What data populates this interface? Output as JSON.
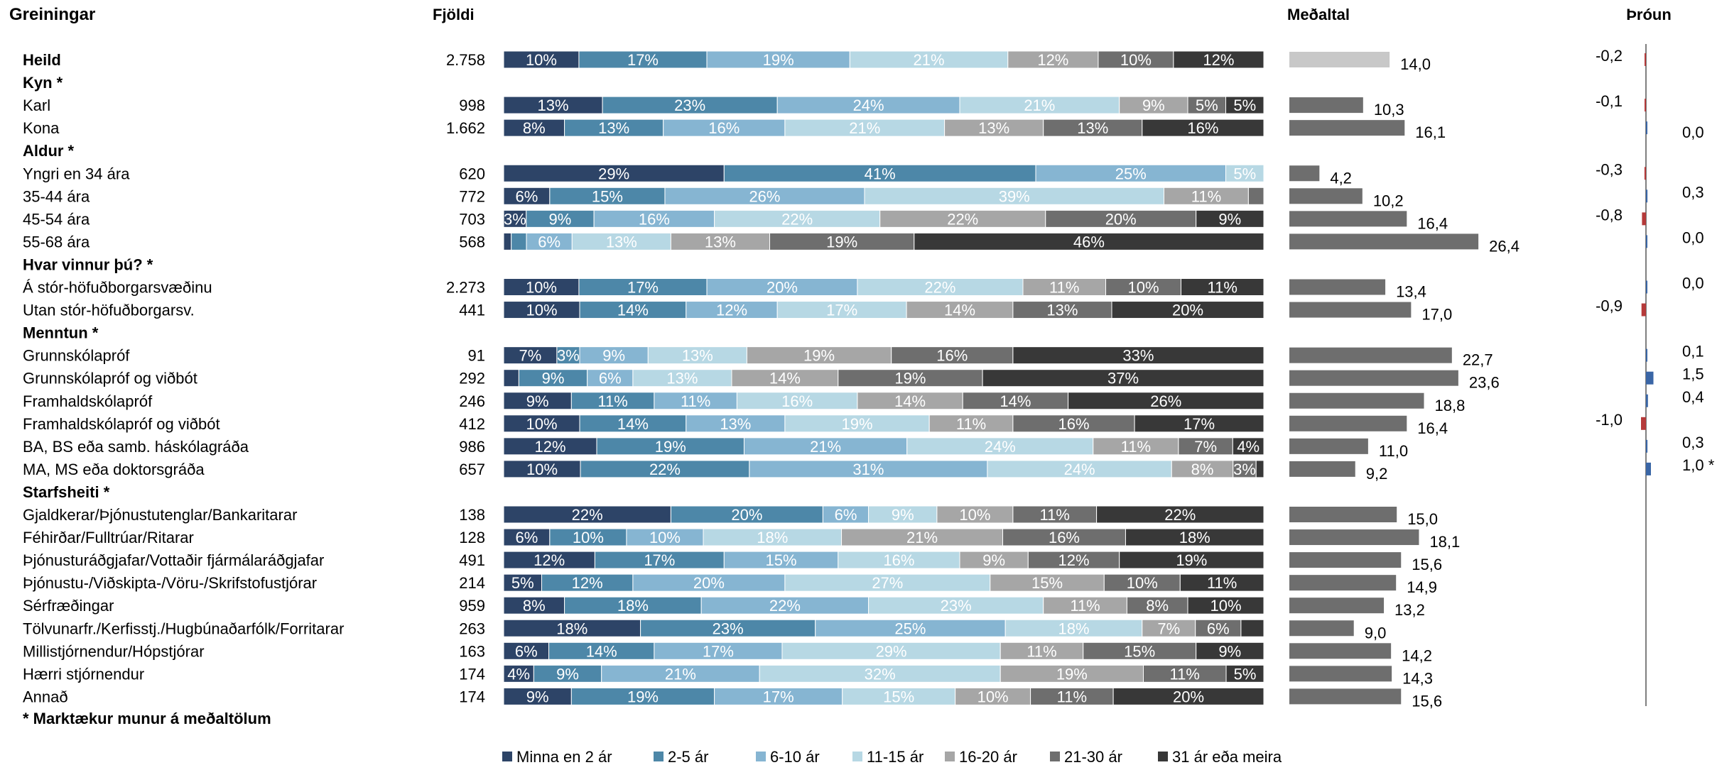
{
  "headers": {
    "greiningar": "Greiningar",
    "fjoldi": "Fjöldi",
    "medaltal": "Meðaltal",
    "throun": "Þróun"
  },
  "footnote": "* Marktækur munur á meðaltölum",
  "colors": {
    "segments": [
      "#2d4467",
      "#4d87a8",
      "#86b5d2",
      "#b7d8e4",
      "#a6a6a6",
      "#6e6e6e",
      "#383838"
    ],
    "total_mean_bar": "#c8c8c8",
    "mean_bar": "#6e6e6e",
    "trend_positive": "#3a66a6",
    "trend_negative": "#b53a3a"
  },
  "chart_data": {
    "type": "bar",
    "stacked": true,
    "orientation": "horizontal",
    "legend_position": "bottom",
    "series": [
      {
        "name": "Minna en 2 ár"
      },
      {
        "name": "2-5 ár"
      },
      {
        "name": "6-10 ár"
      },
      {
        "name": "11-15 ár"
      },
      {
        "name": "16-20 ár"
      },
      {
        "name": "21-30 ár"
      },
      {
        "name": "31 ár eða meira"
      }
    ],
    "rows": [
      {
        "label": "Heild",
        "kind": "total",
        "n": "2.758",
        "values": [
          10,
          17,
          19,
          21,
          12,
          10,
          12
        ],
        "labels": [
          "10%",
          "17%",
          "19%",
          "21%",
          "12%",
          "10%",
          "12%"
        ],
        "mean": 14.0,
        "mean_label": "14,0",
        "trend": -0.2,
        "trend_label": "-0,2"
      },
      {
        "label": "Kyn *",
        "kind": "group"
      },
      {
        "label": "Karl",
        "kind": "row",
        "n": "998",
        "values": [
          13,
          23,
          24,
          21,
          9,
          5,
          5
        ],
        "labels": [
          "13%",
          "23%",
          "24%",
          "21%",
          "9%",
          "5%",
          "5%"
        ],
        "mean": 10.3,
        "mean_label": "10,3",
        "trend": -0.1,
        "trend_label": "-0,1"
      },
      {
        "label": "Kona",
        "kind": "row",
        "n": "1.662",
        "values": [
          8,
          13,
          16,
          21,
          13,
          13,
          16
        ],
        "labels": [
          "8%",
          "13%",
          "16%",
          "21%",
          "13%",
          "13%",
          "16%"
        ],
        "mean": 16.1,
        "mean_label": "16,1",
        "trend": 0.0,
        "trend_label": "0,0"
      },
      {
        "label": "Aldur *",
        "kind": "group"
      },
      {
        "label": "Yngri en 34 ára",
        "kind": "row",
        "n": "620",
        "values": [
          29,
          41,
          25,
          5,
          0,
          0,
          0
        ],
        "labels": [
          "29%",
          "41%",
          "25%",
          "5%",
          "",
          "",
          ""
        ],
        "mean": 4.2,
        "mean_label": "4,2",
        "trend": -0.3,
        "trend_label": "-0,3"
      },
      {
        "label": "35-44 ára",
        "kind": "row",
        "n": "772",
        "values": [
          6,
          15,
          26,
          39,
          11,
          2,
          0
        ],
        "labels": [
          "6%",
          "15%",
          "26%",
          "39%",
          "11%",
          "",
          ""
        ],
        "mean": 10.2,
        "mean_label": "10,2",
        "trend": 0.3,
        "trend_label": "0,3"
      },
      {
        "label": "45-54 ára",
        "kind": "row",
        "n": "703",
        "values": [
          3,
          9,
          16,
          22,
          22,
          20,
          9
        ],
        "labels": [
          "3%",
          "9%",
          "16%",
          "22%",
          "22%",
          "20%",
          "9%"
        ],
        "mean": 16.4,
        "mean_label": "16,4",
        "trend": -0.8,
        "trend_label": "-0,8"
      },
      {
        "label": "55-68 ára",
        "kind": "row",
        "n": "568",
        "values": [
          1,
          2,
          6,
          13,
          13,
          19,
          46
        ],
        "labels": [
          "",
          "",
          "6%",
          "13%",
          "13%",
          "19%",
          "46%"
        ],
        "mean": 26.4,
        "mean_label": "26,4",
        "trend": 0.0,
        "trend_label": "0,0"
      },
      {
        "label": "Hvar vinnur þú? *",
        "kind": "group"
      },
      {
        "label": "Á stór-höfuðborgarsvæðinu",
        "kind": "row",
        "n": "2.273",
        "values": [
          10,
          17,
          20,
          22,
          11,
          10,
          11
        ],
        "labels": [
          "10%",
          "17%",
          "20%",
          "22%",
          "11%",
          "10%",
          "11%"
        ],
        "mean": 13.4,
        "mean_label": "13,4",
        "trend": 0.0,
        "trend_label": "0,0"
      },
      {
        "label": "Utan stór-höfuðborgarsv.",
        "kind": "row",
        "n": "441",
        "values": [
          10,
          14,
          12,
          17,
          14,
          13,
          20
        ],
        "labels": [
          "10%",
          "14%",
          "12%",
          "17%",
          "14%",
          "13%",
          "20%"
        ],
        "mean": 17.0,
        "mean_label": "17,0",
        "trend": -0.9,
        "trend_label": "-0,9"
      },
      {
        "label": "Menntun *",
        "kind": "group"
      },
      {
        "label": "Grunnskólapróf",
        "kind": "row",
        "n": "91",
        "values": [
          7,
          3,
          9,
          13,
          19,
          16,
          33
        ],
        "labels": [
          "7%",
          "3%",
          "9%",
          "13%",
          "19%",
          "16%",
          "33%"
        ],
        "mean": 22.7,
        "mean_label": "22,7",
        "trend": 0.1,
        "trend_label": "0,1"
      },
      {
        "label": "Grunnskólapróf og viðbót",
        "kind": "row",
        "n": "292",
        "values": [
          2,
          9,
          6,
          13,
          14,
          19,
          37
        ],
        "labels": [
          "",
          "9%",
          "6%",
          "13%",
          "14%",
          "19%",
          "37%"
        ],
        "mean": 23.6,
        "mean_label": "23,6",
        "trend": 1.5,
        "trend_label": "1,5"
      },
      {
        "label": "Framhaldskólapróf",
        "kind": "row",
        "n": "246",
        "values": [
          9,
          11,
          11,
          16,
          14,
          14,
          26
        ],
        "labels": [
          "9%",
          "11%",
          "11%",
          "16%",
          "14%",
          "14%",
          "26%"
        ],
        "mean": 18.8,
        "mean_label": "18,8",
        "trend": 0.4,
        "trend_label": "0,4"
      },
      {
        "label": "Framhaldskólapróf og viðbót",
        "kind": "row",
        "n": "412",
        "values": [
          10,
          14,
          13,
          19,
          11,
          16,
          17
        ],
        "labels": [
          "10%",
          "14%",
          "13%",
          "19%",
          "11%",
          "16%",
          "17%"
        ],
        "mean": 16.4,
        "mean_label": "16,4",
        "trend": -1.0,
        "trend_label": "-1,0"
      },
      {
        "label": "BA, BS eða samb. háskólagráða",
        "kind": "row",
        "n": "986",
        "values": [
          12,
          19,
          21,
          24,
          11,
          7,
          4
        ],
        "labels": [
          "12%",
          "19%",
          "21%",
          "24%",
          "11%",
          "7%",
          "4%"
        ],
        "mean": 11.0,
        "mean_label": "11,0",
        "trend": 0.3,
        "trend_label": "0,3"
      },
      {
        "label": "MA, MS eða doktorsgráða",
        "kind": "row",
        "n": "657",
        "values": [
          10,
          22,
          31,
          24,
          8,
          3,
          1
        ],
        "labels": [
          "10%",
          "22%",
          "31%",
          "24%",
          "8%",
          "3%",
          ""
        ],
        "mean": 9.2,
        "mean_label": "9,2",
        "trend": 1.0,
        "trend_label": "1,0 *"
      },
      {
        "label": "Starfsheiti *",
        "kind": "group"
      },
      {
        "label": "Gjaldkerar/Þjónustutenglar/Bankaritarar",
        "kind": "row",
        "n": "138",
        "values": [
          22,
          20,
          6,
          9,
          10,
          11,
          22
        ],
        "labels": [
          "22%",
          "20%",
          "6%",
          "9%",
          "10%",
          "11%",
          "22%"
        ],
        "mean": 15.0,
        "mean_label": "15,0"
      },
      {
        "label": "Féhirðar/Fulltrúar/Ritarar",
        "kind": "row",
        "n": "128",
        "values": [
          6,
          10,
          10,
          18,
          21,
          16,
          18
        ],
        "labels": [
          "6%",
          "10%",
          "10%",
          "18%",
          "21%",
          "16%",
          "18%"
        ],
        "mean": 18.1,
        "mean_label": "18,1"
      },
      {
        "label": "Þjónusturáðgjafar/Vottaðir fjármálaráðgjafar",
        "kind": "row",
        "n": "491",
        "values": [
          12,
          17,
          15,
          16,
          9,
          12,
          19
        ],
        "labels": [
          "12%",
          "17%",
          "15%",
          "16%",
          "9%",
          "12%",
          "19%"
        ],
        "mean": 15.6,
        "mean_label": "15,6"
      },
      {
        "label": "Þjónustu-/Viðskipta-/Vöru-/Skrifstofustjórar",
        "kind": "row",
        "n": "214",
        "values": [
          5,
          12,
          20,
          27,
          15,
          10,
          11
        ],
        "labels": [
          "5%",
          "12%",
          "20%",
          "27%",
          "15%",
          "10%",
          "11%"
        ],
        "mean": 14.9,
        "mean_label": "14,9"
      },
      {
        "label": "Sérfræðingar",
        "kind": "row",
        "n": "959",
        "values": [
          8,
          18,
          22,
          23,
          11,
          8,
          10
        ],
        "labels": [
          "8%",
          "18%",
          "22%",
          "23%",
          "11%",
          "8%",
          "10%"
        ],
        "mean": 13.2,
        "mean_label": "13,2"
      },
      {
        "label": "Tölvunarfr./Kerfisstj./Hugbúnaðarfólk/Forritarar",
        "kind": "row",
        "n": "263",
        "values": [
          18,
          23,
          25,
          18,
          7,
          6,
          3
        ],
        "labels": [
          "18%",
          "23%",
          "25%",
          "18%",
          "7%",
          "6%",
          ""
        ],
        "mean": 9.0,
        "mean_label": "9,0"
      },
      {
        "label": "Millistjórnendur/Hópstjórar",
        "kind": "row",
        "n": "163",
        "values": [
          6,
          14,
          17,
          29,
          11,
          15,
          9
        ],
        "labels": [
          "6%",
          "14%",
          "17%",
          "29%",
          "11%",
          "15%",
          "9%"
        ],
        "mean": 14.2,
        "mean_label": "14,2"
      },
      {
        "label": "Hærri stjórnendur",
        "kind": "row",
        "n": "174",
        "values": [
          4,
          9,
          21,
          32,
          19,
          11,
          5
        ],
        "labels": [
          "4%",
          "9%",
          "21%",
          "32%",
          "19%",
          "11%",
          "5%"
        ],
        "mean": 14.3,
        "mean_label": "14,3"
      },
      {
        "label": "Annað",
        "kind": "row",
        "n": "174",
        "values": [
          9,
          19,
          17,
          15,
          10,
          11,
          20
        ],
        "labels": [
          "9%",
          "19%",
          "17%",
          "15%",
          "10%",
          "11%",
          "20%"
        ],
        "mean": 15.6,
        "mean_label": "15,6"
      }
    ],
    "mean_axis_max": 30,
    "trend_axis_range": [
      -4,
      4
    ]
  }
}
